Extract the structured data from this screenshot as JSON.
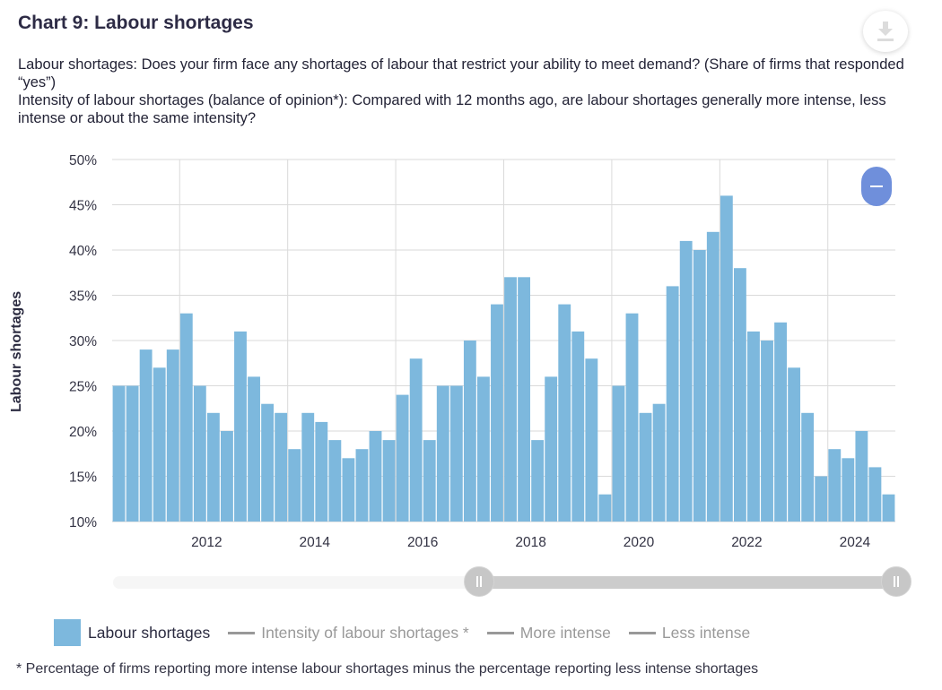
{
  "title": "Chart 9: Labour shortages",
  "description": [
    "Labour shortages: Does your firm face any shortages of labour that restrict your ability to meet demand? (Share of firms that responded “yes”)",
    "Intensity of labour shortages (balance of opinion*): Compared with 12 months ago, are labour shortages generally more intense, less intense or about the same intensity?"
  ],
  "icons": {
    "download": "download-icon",
    "zoom_out": "minus-icon"
  },
  "colors": {
    "bar": "#7db8dd",
    "grid": "#dadada",
    "inactive_legend": "#999999",
    "zoom_button": "#6f8fdb"
  },
  "legend": {
    "items": [
      {
        "label": "Labour shortages",
        "active": true
      },
      {
        "label": "Intensity of labour shortages *",
        "active": false
      },
      {
        "label": "More intense",
        "active": false
      },
      {
        "label": "Less intense",
        "active": false
      }
    ]
  },
  "footnote": "* Percentage of firms reporting more intense labour shortages minus the percentage reporting less intense shortages",
  "chart_data": {
    "type": "bar",
    "ylabel": "Labour shortages",
    "ylim": [
      10,
      50
    ],
    "yticks": [
      "10%",
      "15%",
      "20%",
      "25%",
      "30%",
      "35%",
      "40%",
      "45%",
      "50%"
    ],
    "xticks": [
      "2012",
      "2014",
      "2016",
      "2018",
      "2020",
      "2022",
      "2024"
    ],
    "x_start": "2010-Q4",
    "frequency": "quarterly",
    "series": [
      {
        "name": "Labour shortages",
        "values": [
          25,
          25,
          29,
          27,
          29,
          33,
          25,
          22,
          20,
          31,
          26,
          23,
          22,
          18,
          22,
          21,
          19,
          17,
          18,
          20,
          19,
          24,
          28,
          19,
          25,
          25,
          30,
          26,
          34,
          37,
          37,
          19,
          26,
          34,
          31,
          28,
          13,
          25,
          33,
          22,
          23,
          36,
          41,
          40,
          42,
          46,
          38,
          31,
          30,
          32,
          27,
          22,
          15,
          18,
          17,
          20,
          16,
          13
        ]
      }
    ],
    "grid": true,
    "legend_position": "bottom"
  }
}
